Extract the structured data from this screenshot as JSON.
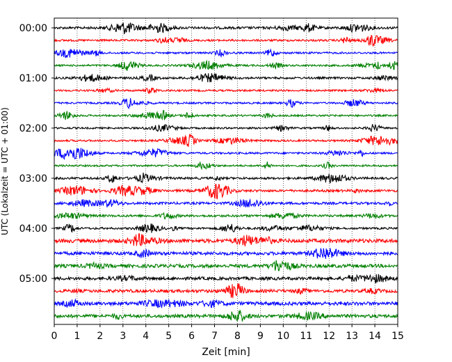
{
  "chart_data": {
    "type": "line",
    "title": "",
    "xlabel": "Zeit  [min]",
    "ylabel": "UTC (Lokalzeit = UTC + 01:00)",
    "xlim": [
      0,
      15
    ],
    "x_ticks": [
      "0",
      "1",
      "2",
      "3",
      "4",
      "5",
      "6",
      "7",
      "8",
      "9",
      "10",
      "11",
      "12",
      "13",
      "14",
      "15"
    ],
    "y_ticks": [
      "00:00",
      "01:00",
      "02:00",
      "03:00",
      "04:00",
      "05:00"
    ],
    "trace_interval_min": 15,
    "trace_count": 24,
    "color_cycle": [
      "#000000",
      "#ff0000",
      "#0000ff",
      "#008000"
    ],
    "grid": {
      "x": "dotted",
      "y": false
    },
    "legend": "none"
  }
}
